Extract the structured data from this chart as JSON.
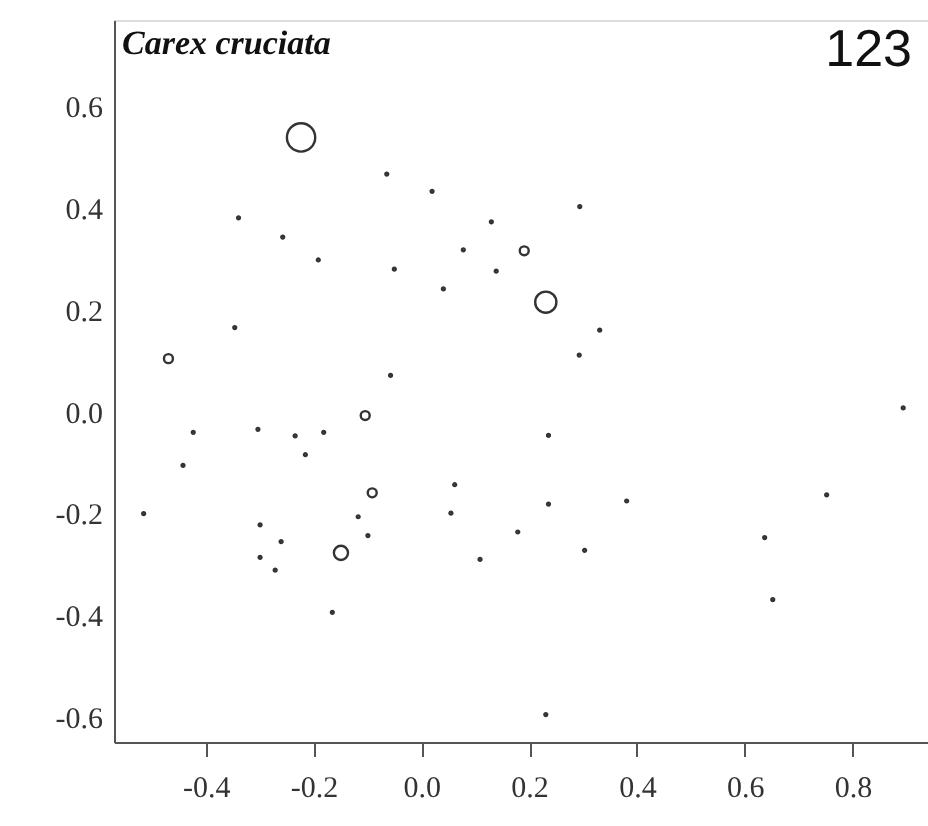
{
  "chart_data": {
    "type": "bubble",
    "title": "Carex cruciata",
    "annotations": [
      "123"
    ],
    "x": [
      -0.223,
      -0.064,
      0.02,
      -0.339,
      -0.257,
      0.13,
      0.078,
      -0.191,
      -0.05,
      0.139,
      0.041,
      -0.346,
      -0.469,
      -0.057,
      0.294,
      0.191,
      0.231,
      0.331,
      0.293,
      -0.104,
      -0.423,
      -0.303,
      -0.234,
      -0.181,
      -0.215,
      -0.442,
      -0.091,
      -0.515,
      -0.299,
      -0.26,
      -0.299,
      -0.271,
      -0.149,
      -0.165,
      -0.117,
      -0.099,
      0.062,
      0.055,
      0.109,
      0.179,
      0.894,
      0.236,
      0.236,
      0.381,
      0.303,
      0.637,
      0.752,
      0.652,
      0.231
    ],
    "values": [
      0.539,
      0.467,
      0.433,
      0.381,
      0.343,
      0.373,
      0.318,
      0.298,
      0.28,
      0.276,
      0.241,
      0.165,
      0.104,
      0.071,
      0.403,
      0.316,
      0.215,
      0.16,
      0.111,
      -0.008,
      -0.041,
      -0.035,
      -0.048,
      -0.041,
      -0.085,
      -0.106,
      -0.16,
      -0.201,
      -0.223,
      -0.256,
      -0.287,
      -0.312,
      -0.278,
      -0.395,
      -0.207,
      -0.244,
      -0.144,
      -0.2,
      -0.291,
      -0.237,
      0.007,
      -0.047,
      -0.182,
      -0.176,
      -0.273,
      -0.248,
      -0.164,
      -0.37,
      -0.596
    ],
    "sizes": [
      1,
      0.01,
      0.01,
      0.01,
      0.01,
      0.01,
      0.01,
      0.01,
      0.01,
      0.01,
      0.01,
      0.01,
      0.1,
      0.01,
      0.01,
      0.1,
      0.56,
      0.01,
      0.01,
      0.1,
      0.01,
      0.01,
      0.01,
      0.01,
      0.01,
      0.01,
      0.1,
      0.01,
      0.01,
      0.01,
      0.01,
      0.01,
      0.25,
      0.01,
      0.01,
      0.01,
      0.01,
      0.01,
      0.01,
      0.01,
      0.01,
      0.01,
      0.01,
      0.01,
      0.01,
      0.01,
      0.01,
      0.01,
      0.01
    ],
    "color": "#333333",
    "marker": "circle",
    "xlim": [
      -0.57,
      0.94
    ],
    "ylim": [
      -0.65,
      0.77
    ],
    "xticks": [
      {
        "value": -0.4,
        "label": "-0.4"
      },
      {
        "value": -0.2,
        "label": "-0.2"
      },
      {
        "value": 0,
        "label": "0.0"
      },
      {
        "value": 0.2,
        "label": "0.2"
      },
      {
        "value": 0.4,
        "label": "0.4"
      },
      {
        "value": 0.6,
        "label": "0.6"
      },
      {
        "value": 0.8,
        "label": "0.8"
      }
    ],
    "yticks": [
      {
        "value": -0.6,
        "label": "-0.6"
      },
      {
        "value": -0.4,
        "label": "-0.4"
      },
      {
        "value": -0.2,
        "label": "-0.2"
      },
      {
        "value": 0,
        "label": "0.0"
      },
      {
        "value": 0.2,
        "label": "0.2"
      },
      {
        "value": 0.4,
        "label": "0.4"
      },
      {
        "value": 0.6,
        "label": "0.6"
      }
    ],
    "grid": false
  }
}
